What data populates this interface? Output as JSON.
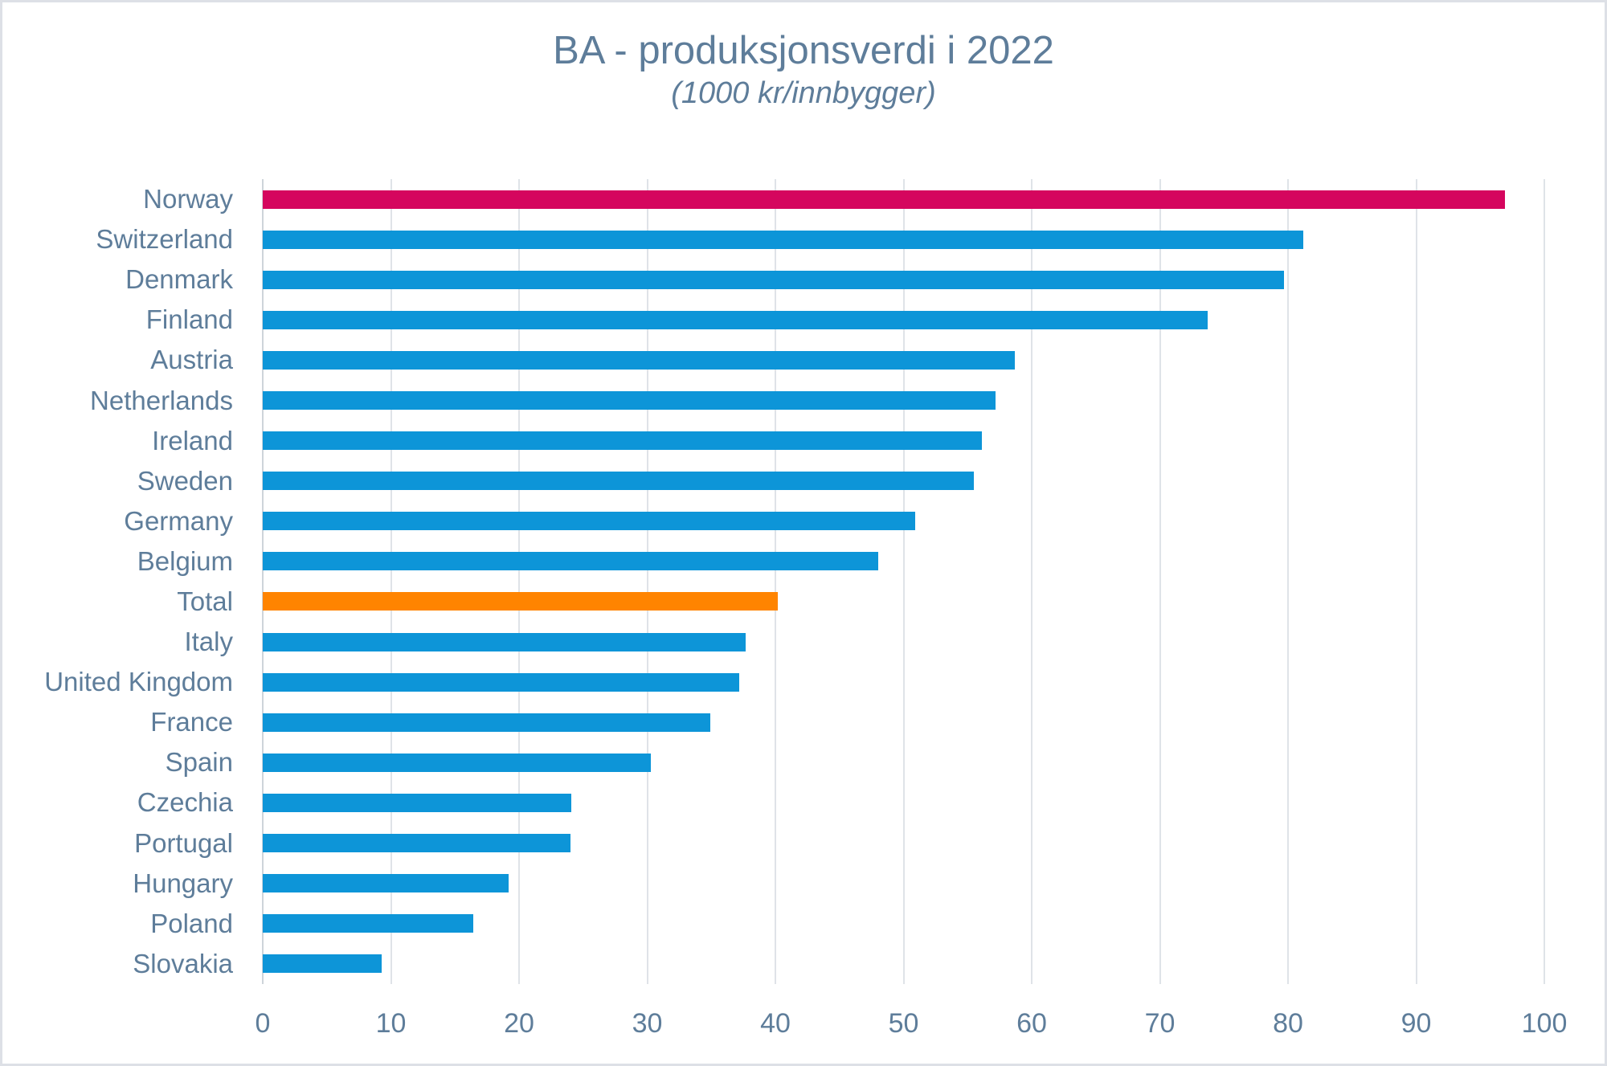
{
  "chart_data": {
    "type": "bar",
    "orientation": "horizontal",
    "title": "BA - produksjonsverdi i 2022",
    "subtitle": "(1000 kr/innbygger)",
    "categories": [
      "Norway",
      "Switzerland",
      "Denmark",
      "Finland",
      "Austria",
      "Netherlands",
      "Ireland",
      "Sweden",
      "Germany",
      "Belgium",
      "Total",
      "Italy",
      "United Kingdom",
      "France",
      "Spain",
      "Czechia",
      "Portugal",
      "Hungary",
      "Poland",
      "Slovakia"
    ],
    "values": [
      96.9,
      81.2,
      79.7,
      73.7,
      58.7,
      57.2,
      56.1,
      55.5,
      50.9,
      48.0,
      40.2,
      37.7,
      37.2,
      34.9,
      30.3,
      24.1,
      24.0,
      19.2,
      16.4,
      9.3
    ],
    "colors": [
      "bar_highlight_pink",
      "bar_default_blue",
      "bar_default_blue",
      "bar_default_blue",
      "bar_default_blue",
      "bar_default_blue",
      "bar_default_blue",
      "bar_default_blue",
      "bar_default_blue",
      "bar_default_blue",
      "bar_highlight_orange",
      "bar_default_blue",
      "bar_default_blue",
      "bar_default_blue",
      "bar_default_blue",
      "bar_default_blue",
      "bar_default_blue",
      "bar_default_blue",
      "bar_default_blue",
      "bar_default_blue"
    ],
    "xlabel": "",
    "ylabel": "",
    "xlim": [
      0,
      100
    ],
    "x_ticks": [
      0,
      10,
      20,
      30,
      40,
      50,
      60,
      70,
      80,
      90,
      100
    ],
    "grid": "vertical-only",
    "legend": "none"
  },
  "palette": {
    "bar_default_blue": "#0d95d8",
    "bar_highlight_pink": "#d5065e",
    "bar_highlight_orange": "#ff8400",
    "text": "#5e7d9a",
    "gridline": "#dfe3e8",
    "axis_line": "#ced4da",
    "frame_border": "#dde0e6",
    "background": "#ffffff"
  }
}
